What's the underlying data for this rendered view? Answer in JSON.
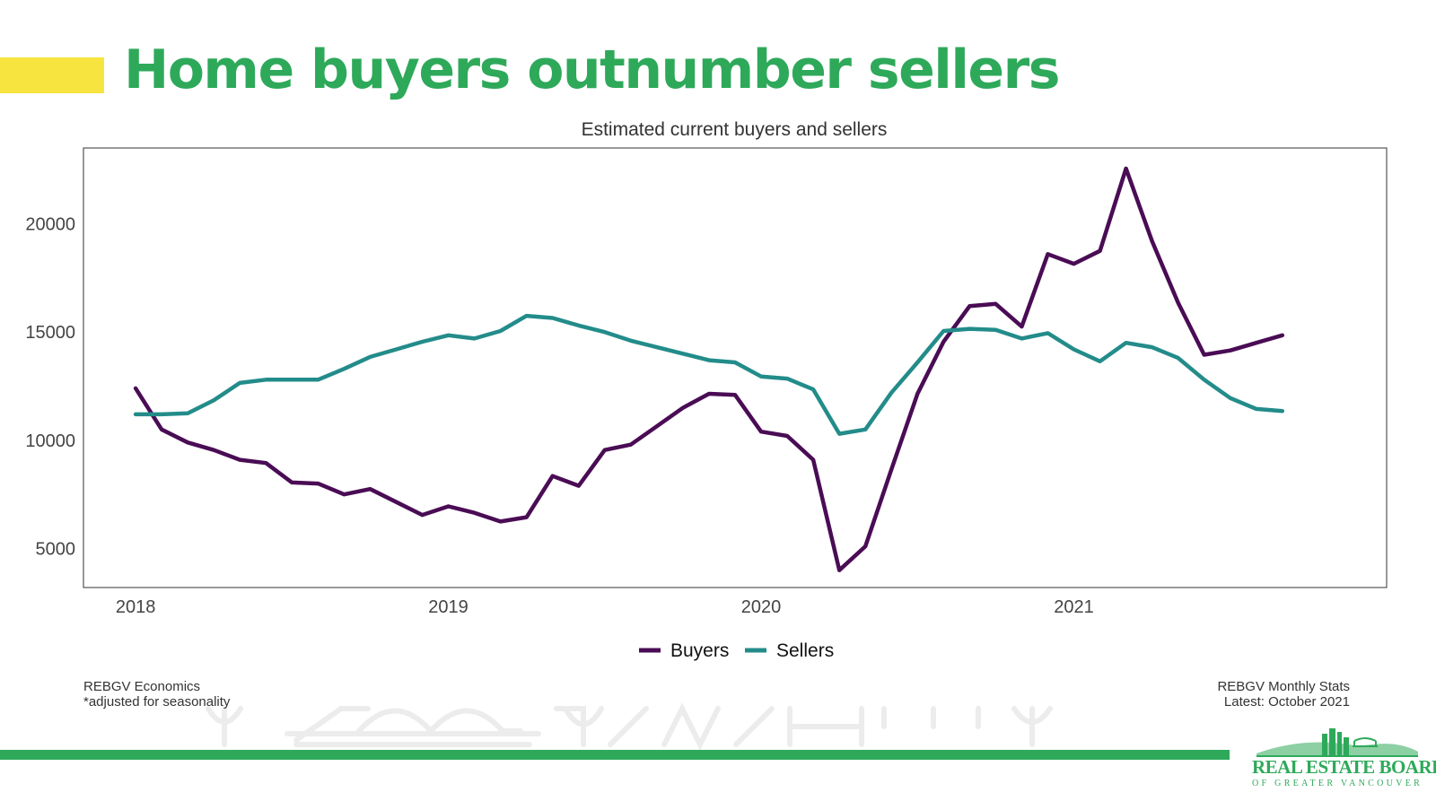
{
  "slide": {
    "title": "Home buyers outnumber sellers"
  },
  "colors": {
    "accent_yellow": "#f7e43e",
    "brand_green": "#2ea95a",
    "buyers": "#4a0c55",
    "sellers": "#238c8a"
  },
  "chart_data": {
    "type": "line",
    "title": "Estimated current buyers and sellers",
    "xlabel": "",
    "ylabel": "",
    "x_start": "2018-01",
    "x_ticks": [
      "2018",
      "2019",
      "2020",
      "2021"
    ],
    "y_ticks": [
      5000,
      10000,
      15000,
      20000
    ],
    "xlim": [
      "2017-11",
      "2022-01"
    ],
    "ylim": [
      3200,
      23500
    ],
    "grid": false,
    "legend": "bottom",
    "series": [
      {
        "name": "Buyers",
        "color": "#4a0c55",
        "values": [
          12400,
          10500,
          9900,
          9550,
          9100,
          8950,
          8050,
          8000,
          7500,
          7750,
          7150,
          6550,
          6950,
          6650,
          6250,
          6450,
          8350,
          7900,
          9550,
          9800,
          10650,
          11500,
          12150,
          12100,
          10400,
          10200,
          9100,
          4000,
          5100,
          8650,
          12150,
          14550,
          16200,
          16300,
          15250,
          18600,
          18150,
          18750,
          22550,
          19200,
          16350,
          13950,
          14150,
          14500,
          14850
        ]
      },
      {
        "name": "Sellers",
        "color": "#238c8a",
        "values": [
          11200,
          11200,
          11250,
          11850,
          12650,
          12800,
          12800,
          12800,
          13300,
          13850,
          14200,
          14550,
          14850,
          14700,
          15050,
          15750,
          15650,
          15300,
          15000,
          14600,
          14300,
          14000,
          13700,
          13600,
          12950,
          12850,
          12350,
          10300,
          10500,
          12200,
          13600,
          15050,
          15150,
          15100,
          14700,
          14950,
          14200,
          13650,
          14500,
          14300,
          13800,
          12800,
          11950,
          11450,
          11350
        ]
      }
    ]
  },
  "footer": {
    "left_line1": "REBGV Economics",
    "left_line2": "*adjusted for seasonality",
    "right_line1": "REBGV Monthly Stats",
    "right_line2": "Latest: October 2021"
  },
  "logo": {
    "name": "REAL ESTATE BOARD",
    "sub": "OF GREATER VANCOUVER"
  }
}
